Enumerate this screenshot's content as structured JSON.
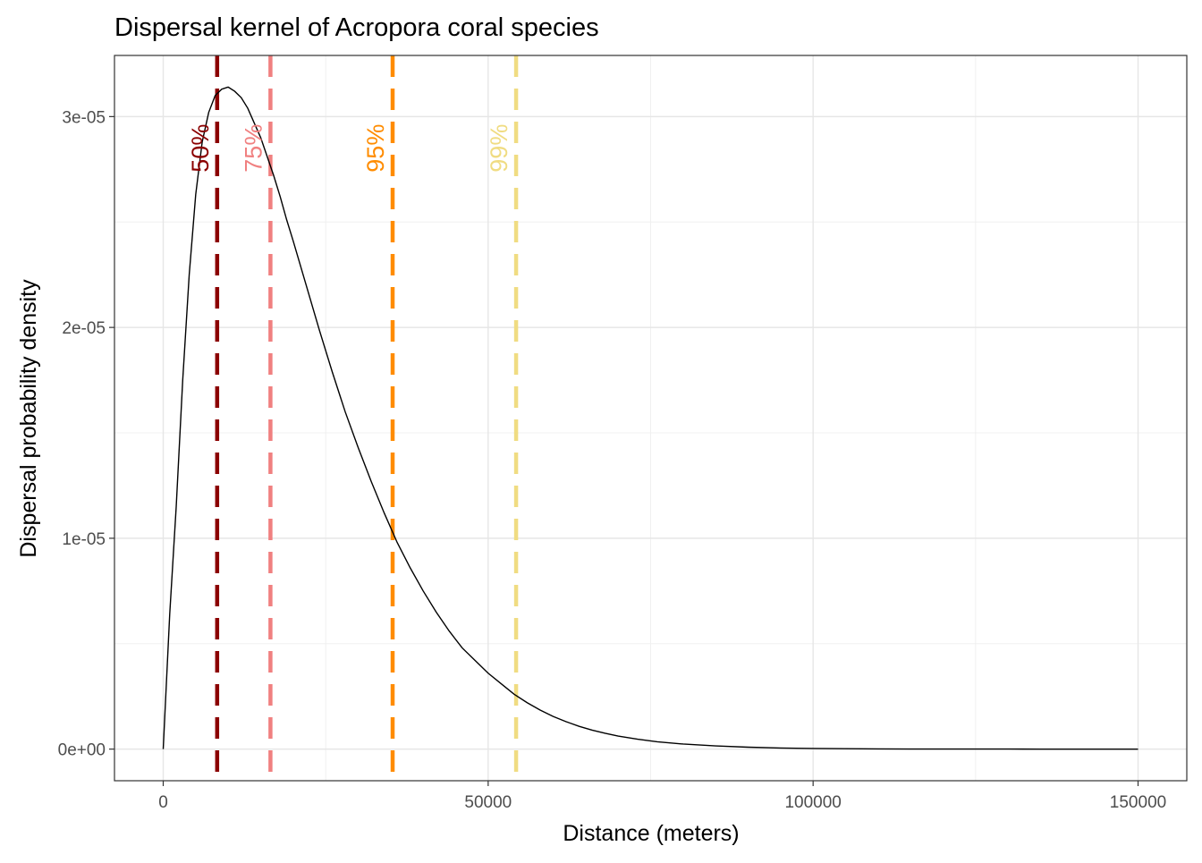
{
  "chart_data": {
    "type": "line",
    "title": "Dispersal kernel of Acropora coral species",
    "xlabel": "Distance (meters)",
    "ylabel": "Dispersal probability density",
    "xlim": [
      -7500,
      157500
    ],
    "ylim": [
      -1.5e-06,
      3.29e-05
    ],
    "x_ticks": [
      0,
      50000,
      100000,
      150000
    ],
    "x_tick_labels": [
      "0",
      "50000",
      "100000",
      "150000"
    ],
    "y_ticks": [
      0,
      1e-05,
      2e-05,
      3e-05
    ],
    "y_tick_labels": [
      "0e+00",
      "1e-05",
      "2e-05",
      "3e-05"
    ],
    "grid": true,
    "series": [
      {
        "name": "Dispersal kernel",
        "color": "#000000",
        "x": [
          0,
          500,
          1000,
          2000,
          3000,
          4000,
          5000,
          6000,
          7000,
          8000,
          9000,
          10000,
          11000,
          12000,
          13000,
          14000,
          15000,
          16000,
          17000,
          18000,
          19000,
          20000,
          22000,
          24000,
          26000,
          28000,
          30000,
          32000,
          34000,
          36000,
          38000,
          40000,
          42000,
          44000,
          46000,
          48000,
          50000,
          52000,
          54000,
          56000,
          58000,
          60000,
          62000,
          64000,
          66000,
          68000,
          70000,
          73000,
          76000,
          80000,
          85000,
          90000,
          95000,
          100000,
          105000,
          110000,
          115000,
          120000,
          125000,
          130000,
          135000,
          140000,
          145000,
          150000
        ],
        "values": [
          0,
          3.2e-06,
          6.4e-06,
          1.15e-05,
          1.75e-05,
          2.25e-05,
          2.63e-05,
          2.88e-05,
          3.02e-05,
          3.1e-05,
          3.13e-05,
          3.14e-05,
          3.12e-05,
          3.09e-05,
          3.04e-05,
          2.97e-05,
          2.9e-05,
          2.81e-05,
          2.72e-05,
          2.62e-05,
          2.51e-05,
          2.41e-05,
          2.2e-05,
          1.99e-05,
          1.79e-05,
          1.6e-05,
          1.43e-05,
          1.27e-05,
          1.12e-05,
          9.8e-06,
          8.6e-06,
          7.5e-06,
          6.5e-06,
          5.6e-06,
          4.8e-06,
          4.2e-06,
          3.6e-06,
          3.1e-06,
          2.6e-06,
          2.2e-06,
          1.85e-06,
          1.55e-06,
          1.3e-06,
          1.08e-06,
          9e-07,
          7.5e-07,
          6.2e-07,
          4.7e-07,
          3.5e-07,
          2.4e-07,
          1.5e-07,
          9e-08,
          5e-08,
          3e-08,
          2e-08,
          1e-08,
          5e-09,
          3e-09,
          2e-09,
          1e-09,
          0,
          0,
          0,
          0
        ]
      }
    ],
    "quantile_lines": [
      {
        "label": "50%",
        "x": 8300,
        "color": "#8B0000"
      },
      {
        "label": "75%",
        "x": 16500,
        "color": "#F08080"
      },
      {
        "label": "95%",
        "x": 35300,
        "color": "#FF8C00"
      },
      {
        "label": "99%",
        "x": 54300,
        "color": "#F0DC82"
      }
    ],
    "quantile_label_y": 2.85e-05
  }
}
